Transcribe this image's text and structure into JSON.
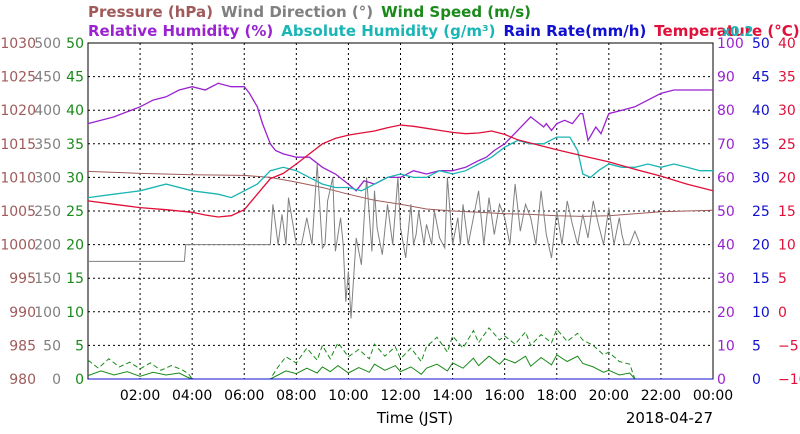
{
  "chart_data": {
    "type": "line",
    "legend": [
      {
        "text": "Pressure (hPa)",
        "color": "#a05a5a"
      },
      {
        "text": "Wind Direction (°)",
        "color": "#808080"
      },
      {
        "text": "Wind Speed (m/s)",
        "color": "#1a8a1a"
      },
      {
        "text": "Relative Humidity (%)",
        "color": "#9a22d0"
      },
      {
        "text": "Absolute Humidity (g/m³)",
        "color": "#1ab5b5"
      },
      {
        "text": "Rain Rate(mm/h)",
        "color": "#1010d0"
      },
      {
        "text": "Temperature (°C)",
        "color": "#e0103a"
      }
    ],
    "extra_label": {
      "text": "x0.2",
      "color": "#1ab5b5"
    },
    "xlabel": "Time (JST)",
    "date": "2018-04-27",
    "xlim": [
      0,
      24
    ],
    "x_ticks": [
      "02:00",
      "04:00",
      "06:00",
      "08:00",
      "10:00",
      "12:00",
      "14:00",
      "16:00",
      "18:00",
      "20:00",
      "22:00",
      "00:00"
    ],
    "grid": true,
    "axes": {
      "pressure": {
        "color": "#a05a5a",
        "range": [
          980,
          1030
        ],
        "ticks": [
          "1030",
          "1025",
          "1020",
          "1015",
          "1010",
          "1005",
          "1000",
          "995",
          "990",
          "985",
          "980"
        ]
      },
      "wind_direction": {
        "color": "#808080",
        "range": [
          0,
          500
        ],
        "ticks": [
          "500",
          "450",
          "400",
          "350",
          "300",
          "250",
          "200",
          "150",
          "100",
          "50",
          "0"
        ]
      },
      "wind_speed": {
        "color": "#1a8a1a",
        "range": [
          0,
          50
        ],
        "ticks": [
          "50",
          "45",
          "40",
          "35",
          "30",
          "25",
          "20",
          "15",
          "10",
          "5",
          "0"
        ]
      },
      "relative_humidity": {
        "color": "#9a22d0",
        "range": [
          0,
          100
        ],
        "ticks": [
          "100",
          "90",
          "80",
          "70",
          "60",
          "50",
          "40",
          "30",
          "20",
          "10",
          "0"
        ]
      },
      "rain_rate": {
        "color": "#1010d0",
        "range": [
          0,
          50
        ],
        "ticks": [
          "50",
          "45",
          "40",
          "35",
          "30",
          "25",
          "20",
          "15",
          "10",
          "5",
          "0"
        ]
      },
      "temperature": {
        "color": "#e0103a",
        "range": [
          -10,
          40
        ],
        "ticks": [
          "40",
          "35",
          "30",
          "25",
          "20",
          "15",
          "10",
          "5",
          "0",
          "−5",
          "−10"
        ]
      }
    },
    "series": [
      {
        "name": "Pressure (hPa)",
        "axis": "pressure",
        "color": "#a05a5a",
        "x": [
          0,
          2,
          4,
          6,
          7,
          8,
          9,
          10,
          11,
          12,
          13,
          14,
          15,
          16,
          17,
          18,
          19,
          20,
          21,
          22,
          23,
          24
        ],
        "y": [
          1010.9,
          1010.6,
          1010.4,
          1010.3,
          1010.0,
          1009.3,
          1008.5,
          1007.5,
          1006.6,
          1006.0,
          1005.3,
          1005.0,
          1004.8,
          1004.6,
          1004.5,
          1004.3,
          1004.2,
          1004.3,
          1004.6,
          1004.9,
          1005.0,
          1005.1
        ]
      },
      {
        "name": "Wind Direction (°)",
        "axis": "wind_direction",
        "color": "#808080",
        "x": [
          0,
          1,
          2,
          3,
          3.7,
          3.75,
          5,
          6,
          7,
          7.1,
          7.3,
          7.45,
          7.6,
          7.7,
          8,
          8.2,
          8.4,
          8.6,
          8.8,
          9,
          9.1,
          9.2,
          9.4,
          9.5,
          9.7,
          9.8,
          9.9,
          10,
          10.1,
          10.2,
          10.3,
          10.5,
          10.7,
          10.9,
          11,
          11.1,
          11.3,
          11.5,
          11.7,
          11.9,
          12,
          12.2,
          12.4,
          12.5,
          12.6,
          12.7,
          12.9,
          13,
          13.2,
          13.3,
          13.5,
          13.7,
          13.8,
          14,
          14.2,
          14.3,
          14.4,
          14.6,
          14.8,
          15,
          15.2,
          15.4,
          15.6,
          15.8,
          16,
          16.2,
          16.4,
          16.6,
          16.8,
          17,
          17.2,
          17.4,
          17.6,
          17.8,
          18,
          18.2,
          18.4,
          18.6,
          18.8,
          19,
          19.2,
          19.4,
          19.6,
          19.8,
          20,
          20.2,
          20.4,
          20.5,
          20.6,
          20.8,
          21,
          21.2
        ],
        "y": [
          175,
          175,
          175,
          175,
          175,
          200,
          200,
          200,
          200,
          260,
          200,
          245,
          200,
          270,
          200,
          200,
          240,
          200,
          320,
          195,
          200,
          265,
          300,
          190,
          240,
          200,
          115,
          160,
          90,
          150,
          210,
          170,
          300,
          190,
          280,
          225,
          185,
          260,
          200,
          300,
          225,
          180,
          260,
          200,
          215,
          250,
          200,
          230,
          200,
          250,
          210,
          195,
          300,
          200,
          240,
          200,
          260,
          200,
          240,
          280,
          200,
          270,
          215,
          260,
          240,
          200,
          290,
          220,
          260,
          240,
          200,
          280,
          215,
          180,
          250,
          200,
          265,
          230,
          200,
          245,
          210,
          265,
          230,
          200,
          255,
          200,
          240,
          215,
          200,
          200,
          220,
          200
        ]
      },
      {
        "name": "Wind Speed (m/s)",
        "axis": "wind_speed",
        "color": "#1a8a1a",
        "dash": "none",
        "x": [
          0,
          0.5,
          1,
          1.5,
          2,
          2.5,
          3,
          3.5,
          3.8,
          4,
          7,
          7.3,
          7.6,
          8,
          8.4,
          8.8,
          9,
          9.3,
          9.6,
          10,
          10.4,
          10.8,
          11,
          11.4,
          11.8,
          12,
          12.4,
          12.8,
          13,
          13.4,
          13.8,
          14,
          14.4,
          14.8,
          15,
          15.4,
          15.8,
          16,
          16.4,
          16.8,
          17,
          17.4,
          17.8,
          18,
          18.4,
          18.8,
          19,
          19.4,
          19.8,
          20,
          20.4,
          20.8,
          21,
          24
        ],
        "y": [
          0.5,
          1.2,
          0.6,
          1.1,
          0.4,
          1.0,
          0.6,
          0.9,
          0.3,
          0,
          0,
          0.6,
          1.2,
          0.8,
          1.6,
          0.9,
          1.8,
          1.1,
          2.0,
          0.9,
          1.7,
          1.0,
          2.2,
          1.3,
          2.0,
          1.1,
          1.8,
          0.7,
          1.6,
          2.2,
          1.2,
          2.4,
          1.6,
          3.1,
          2.0,
          3.4,
          2.2,
          3.0,
          2.4,
          3.4,
          1.9,
          3.2,
          2.1,
          3.6,
          2.6,
          3.4,
          2.3,
          1.8,
          1.0,
          1.3,
          0.6,
          0.9,
          0,
          0
        ]
      },
      {
        "name": "Wind Speed gust",
        "axis": "wind_speed",
        "color": "#1a8a1a",
        "dash": "5,3",
        "x": [
          0,
          0.4,
          0.8,
          1.2,
          1.6,
          2,
          2.4,
          2.8,
          3.2,
          3.6,
          3.85,
          4,
          7,
          7.3,
          7.6,
          8,
          8.4,
          8.8,
          9,
          9.3,
          9.6,
          10,
          10.4,
          10.8,
          11,
          11.4,
          11.8,
          12,
          12.4,
          12.8,
          13,
          13.4,
          13.8,
          14,
          14.4,
          14.8,
          15,
          15.4,
          15.8,
          16,
          16.4,
          16.8,
          17,
          17.4,
          17.8,
          18,
          18.4,
          18.8,
          19,
          19.4,
          19.8,
          20,
          20.4,
          20.8,
          21
        ],
        "y": [
          2.8,
          1.6,
          3.0,
          1.8,
          2.5,
          1.5,
          2.4,
          1.3,
          2.0,
          1.4,
          0.8,
          0,
          0,
          1.8,
          3.3,
          2.4,
          4.6,
          2.8,
          5.0,
          3.0,
          5.4,
          3.3,
          4.4,
          3.0,
          5.2,
          3.4,
          4.8,
          3.0,
          4.6,
          2.6,
          4.8,
          6.2,
          4.0,
          6.4,
          4.6,
          7.2,
          5.4,
          7.6,
          5.8,
          6.4,
          5.2,
          7.0,
          5.0,
          6.6,
          5.4,
          7.4,
          5.6,
          6.8,
          5.8,
          5.0,
          3.6,
          4.0,
          2.6,
          2.2,
          0
        ]
      },
      {
        "name": "Relative Humidity (%)",
        "axis": "relative_humidity",
        "color": "#9a22d0",
        "x": [
          0,
          0.5,
          1,
          2,
          2.5,
          3,
          3.5,
          4,
          4.5,
          5,
          5.5,
          6,
          6.2,
          6.5,
          6.7,
          7,
          7.2,
          7.5,
          8,
          8.5,
          9,
          9.5,
          10,
          10.3,
          10.6,
          11,
          11.5,
          12,
          12.5,
          13,
          13.5,
          14,
          14.5,
          15,
          15.3,
          15.6,
          16,
          16.5,
          17,
          17.5,
          17.6,
          17.8,
          18,
          18.3,
          18.6,
          18.9,
          19,
          19.2,
          19.5,
          19.7,
          20,
          20.5,
          21,
          21.5,
          22,
          22.5,
          23,
          23.5,
          24
        ],
        "y": [
          76,
          77,
          78,
          81,
          83,
          84,
          86,
          87,
          86,
          88,
          87,
          87,
          85,
          81,
          76,
          70,
          68,
          67,
          66,
          66,
          63,
          61,
          58,
          56,
          59,
          58,
          60,
          60,
          62,
          61,
          62,
          62,
          63,
          65,
          66,
          68,
          70,
          74,
          78,
          75,
          76,
          74,
          76,
          77,
          76,
          79,
          79,
          71,
          75,
          73,
          79,
          80,
          81,
          83,
          85,
          86,
          86,
          86,
          86
        ]
      },
      {
        "name": "Absolute Humidity (g/m³)",
        "axis": "relative_humidity",
        "color": "#1ab5b5",
        "x": [
          0,
          1,
          2,
          3,
          4,
          5,
          5.5,
          6,
          6.5,
          7,
          7.5,
          8,
          8.5,
          9,
          9.5,
          10,
          10.5,
          11,
          11.5,
          12,
          12.5,
          13,
          13.5,
          14,
          14.5,
          15,
          15.5,
          16,
          16.5,
          17,
          17.5,
          18,
          18.5,
          18.8,
          19,
          19.3,
          19.6,
          20,
          20.5,
          21,
          21.5,
          22,
          22.5,
          23,
          23.5,
          24
        ],
        "y": [
          54,
          55,
          56,
          58,
          56,
          55,
          54,
          56,
          58,
          62,
          63,
          62,
          60,
          58,
          57,
          57,
          56,
          58,
          60,
          61,
          60,
          60,
          62,
          61,
          62,
          64,
          66,
          69,
          71,
          70,
          70,
          72,
          72,
          68,
          61,
          60,
          62,
          64,
          63,
          63,
          64,
          63,
          64,
          63,
          62,
          62
        ]
      },
      {
        "name": "Temperature (°C)",
        "axis": "temperature",
        "color": "#e0103a",
        "x": [
          0,
          1,
          2,
          3,
          4,
          4.5,
          5,
          5.5,
          6,
          6.5,
          7,
          7.5,
          8,
          8.5,
          9,
          9.5,
          10,
          10.5,
          11,
          11.5,
          12,
          12.5,
          13,
          13.5,
          14,
          14.5,
          15,
          15.5,
          16,
          16.5,
          17,
          18,
          19,
          20,
          21,
          22,
          23,
          24
        ],
        "y": [
          16.5,
          16,
          15.5,
          15.2,
          14.8,
          14.4,
          14.1,
          14.3,
          15.2,
          17.5,
          19.8,
          20.6,
          22.0,
          23.5,
          25.0,
          25.8,
          26.3,
          26.6,
          26.9,
          27.4,
          27.8,
          27.6,
          27.3,
          27.0,
          26.7,
          26.5,
          26.6,
          26.9,
          26.4,
          25.6,
          25.1,
          24.1,
          23.2,
          22.3,
          21.2,
          20.2,
          19.0,
          18.0
        ]
      },
      {
        "name": "Rain Rate(mm/h)",
        "axis": "rain_rate",
        "color": "#1010d0",
        "x": [
          0,
          24
        ],
        "y": [
          0,
          0
        ]
      }
    ]
  }
}
